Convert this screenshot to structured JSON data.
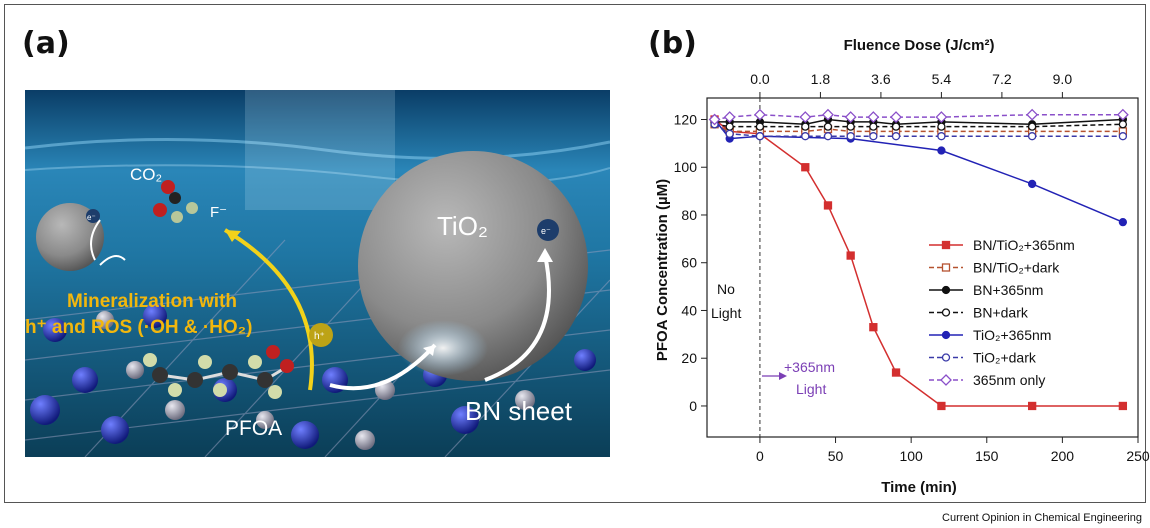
{
  "panel_a": {
    "label": "(a)",
    "texts": {
      "co2": "CO₂",
      "f": "F⁻",
      "tio2": "TiO₂",
      "e_big": "e⁻",
      "e_small": "e⁻",
      "h": "h⁺",
      "min1": "Mineralization with",
      "min2": "h⁺ and ROS (·OH & ·HO₂)",
      "pfoa": "PFOA",
      "bn": "BN sheet"
    }
  },
  "footer": "Current Opinion in Chemical Engineering",
  "chart_data": {
    "label": "(b)",
    "type": "line",
    "xlabel": "Time (min)",
    "ylabel": "PFOA Concentration (µM)",
    "top_xlabel": "Fluence Dose (J/cm²)",
    "xlim": [
      -35,
      250
    ],
    "ylim": [
      -13,
      129
    ],
    "xticks": [
      0,
      50,
      100,
      150,
      200,
      250
    ],
    "yticks": [
      0,
      20,
      40,
      60,
      80,
      100,
      120
    ],
    "top_ticks": [
      {
        "time": 0,
        "label": "0.0"
      },
      {
        "time": 40,
        "label": "1.8"
      },
      {
        "time": 80,
        "label": "3.6"
      },
      {
        "time": 120,
        "label": "5.4"
      },
      {
        "time": 160,
        "label": "7.2"
      },
      {
        "time": 200,
        "label": "9.0"
      }
    ],
    "legend_position": "right",
    "divider_x": 0,
    "annotations": {
      "no_light_1": "No",
      "no_light_2": "Light",
      "light_1": "+365nm",
      "light_2": "Light"
    },
    "series": [
      {
        "name": "BN/TiO₂+365nm",
        "color": "#d32f2f",
        "marker": "square",
        "filled": true,
        "dashed": false,
        "x": [
          -30,
          -20,
          0,
          30,
          45,
          60,
          75,
          90,
          120,
          180,
          240
        ],
        "y": [
          120,
          115,
          114,
          100,
          84,
          63,
          33,
          14,
          0,
          0,
          0
        ]
      },
      {
        "name": "BN/TiO₂+dark",
        "color": "#b5522f",
        "marker": "square",
        "filled": false,
        "dashed": true,
        "x": [
          -30,
          -20,
          0,
          30,
          45,
          60,
          75,
          90,
          120,
          180,
          240
        ],
        "y": [
          118,
          115,
          115,
          115,
          116,
          115,
          115,
          115,
          115,
          115,
          115
        ]
      },
      {
        "name": "BN+365nm",
        "color": "#111111",
        "marker": "circle",
        "filled": true,
        "dashed": false,
        "x": [
          -30,
          -20,
          0,
          30,
          45,
          60,
          75,
          90,
          120,
          180,
          240
        ],
        "y": [
          119,
          119,
          119,
          118,
          120,
          119,
          119,
          118,
          119,
          118,
          120
        ]
      },
      {
        "name": "BN+dark",
        "color": "#111111",
        "marker": "circle",
        "filled": false,
        "dashed": true,
        "x": [
          -30,
          -20,
          0,
          30,
          45,
          60,
          75,
          90,
          120,
          180,
          240
        ],
        "y": [
          118,
          117,
          117,
          117,
          117,
          117,
          117,
          117,
          117,
          117,
          118
        ]
      },
      {
        "name": "TiO₂+365nm",
        "color": "#2222b5",
        "marker": "circle",
        "filled": true,
        "dashed": false,
        "x": [
          -30,
          -20,
          0,
          60,
          120,
          180,
          240
        ],
        "y": [
          120,
          112,
          113,
          112,
          107,
          93,
          77
        ]
      },
      {
        "name": "TiO₂+dark",
        "color": "#3a3aa8",
        "marker": "circle",
        "filled": false,
        "dashed": true,
        "x": [
          -30,
          -20,
          0,
          30,
          45,
          60,
          75,
          90,
          120,
          180,
          240
        ],
        "y": [
          118,
          114,
          113,
          113,
          113,
          113,
          113,
          113,
          113,
          113,
          113
        ]
      },
      {
        "name": "365nm only",
        "color": "#8a4fc9",
        "marker": "diamond",
        "filled": false,
        "dashed": true,
        "x": [
          -30,
          -20,
          0,
          30,
          45,
          60,
          75,
          90,
          120,
          180,
          240
        ],
        "y": [
          120,
          121,
          122,
          121,
          122,
          121,
          121,
          121,
          121,
          122,
          122
        ]
      }
    ]
  }
}
